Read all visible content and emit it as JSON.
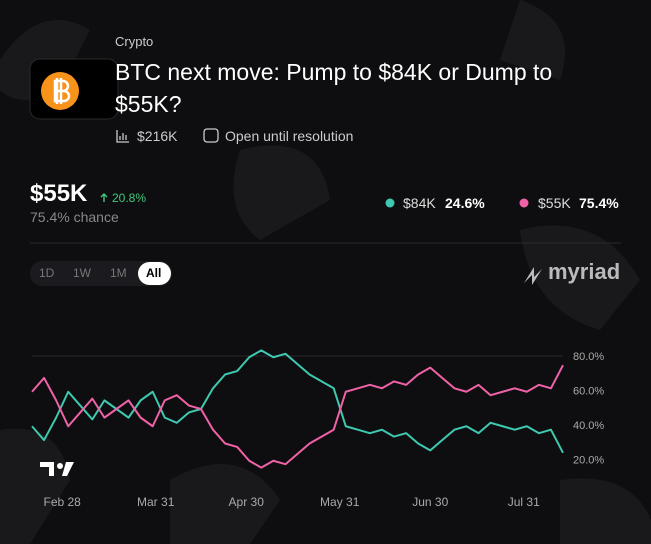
{
  "market": {
    "category": "Crypto",
    "title": "BTC next move: Pump to $84K or Dump to $55K?",
    "volume": "$216K",
    "status": "Open until resolution",
    "outcome_price": "$55K",
    "change": "20.8%",
    "chance": "75.4% chance"
  },
  "controls": {
    "ranges": [
      "1D",
      "1W",
      "1M",
      "All"
    ]
  },
  "logo": "myriad",
  "chart_data": {
    "type": "line",
    "x": [
      -10,
      -6,
      -2,
      2,
      6,
      10,
      14,
      18,
      22,
      26,
      30,
      34,
      38,
      42,
      46,
      50,
      54,
      58,
      62,
      66,
      70,
      74,
      78,
      82,
      86,
      90,
      94,
      98,
      102,
      106,
      110,
      114,
      118,
      122,
      126,
      130,
      134,
      138,
      142,
      146,
      150,
      154,
      158,
      162,
      166
    ],
    "series": [
      {
        "name": "$84K",
        "color": "#3ec9b0",
        "value_label": "24.6%",
        "values": [
          40,
          32,
          45,
          60,
          52,
          44,
          55,
          50,
          45,
          55,
          60,
          45,
          42,
          48,
          50,
          62,
          70,
          72,
          80,
          84,
          80,
          82,
          76,
          70,
          66,
          62,
          40,
          38,
          36,
          38,
          34,
          36,
          30,
          26,
          32,
          38,
          40,
          36,
          42,
          40,
          38,
          40,
          36,
          38,
          24.6
        ]
      },
      {
        "name": "$55K",
        "color": "#f062a8",
        "value_label": "75.4%",
        "values": [
          60,
          68,
          55,
          40,
          48,
          56,
          45,
          50,
          55,
          45,
          40,
          55,
          58,
          52,
          50,
          38,
          30,
          28,
          20,
          16,
          20,
          18,
          24,
          30,
          34,
          38,
          60,
          62,
          64,
          62,
          66,
          64,
          70,
          74,
          68,
          62,
          60,
          64,
          58,
          60,
          62,
          60,
          64,
          62,
          75.4
        ]
      }
    ],
    "xlim": [
      -10,
      166
    ],
    "xticks": [
      {
        "value": 0,
        "label": "Feb 28"
      },
      {
        "value": 31,
        "label": "Mar 31"
      },
      {
        "value": 61,
        "label": "Apr 30"
      },
      {
        "value": 92,
        "label": "May 31"
      },
      {
        "value": 122,
        "label": "Jun 30"
      },
      {
        "value": 153,
        "label": "Jul 31"
      }
    ],
    "ylim": [
      10,
      90
    ],
    "yticks": [
      {
        "value": 20,
        "label": "20.0%"
      },
      {
        "value": 40,
        "label": "40.0%"
      },
      {
        "value": 60,
        "label": "60.0%"
      },
      {
        "value": 80,
        "label": "80.0%"
      }
    ],
    "grid": false
  }
}
